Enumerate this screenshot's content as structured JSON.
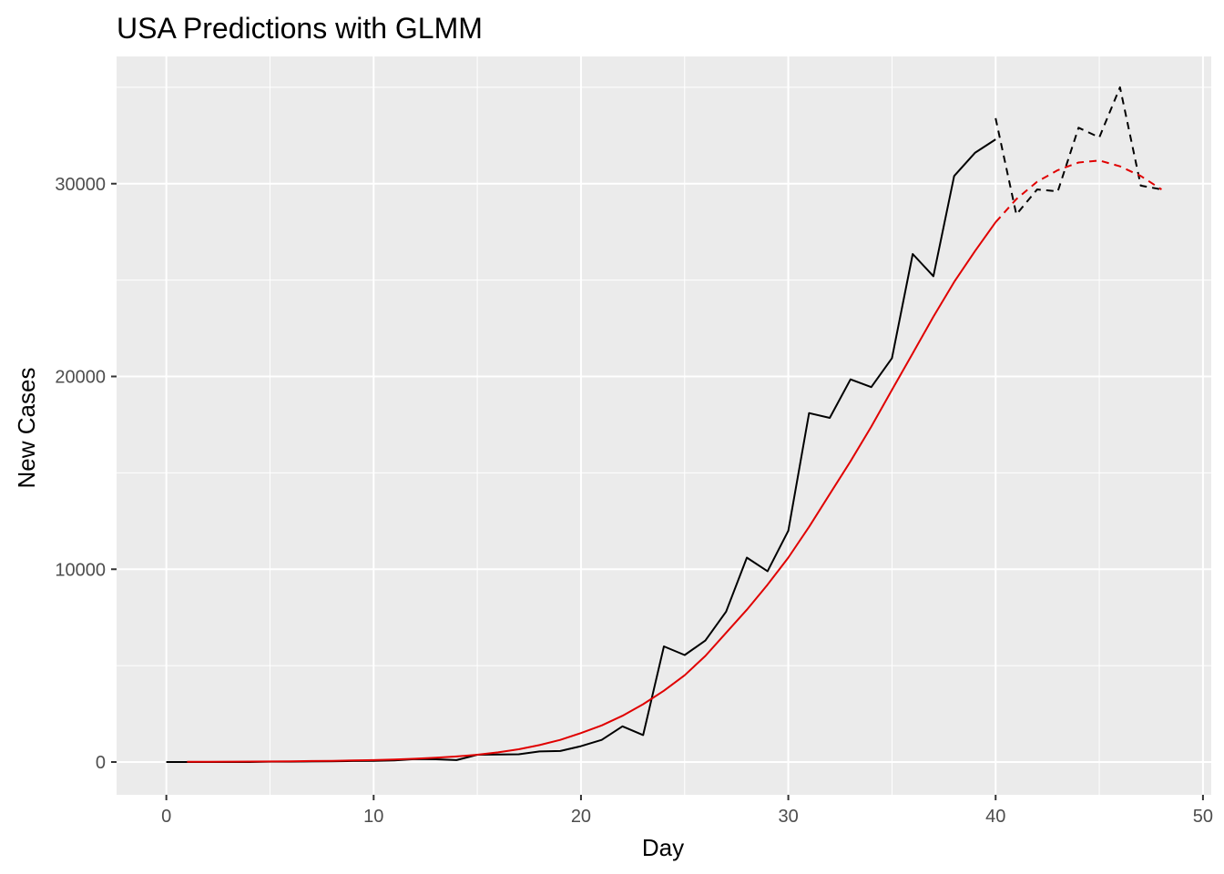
{
  "chart_data": {
    "type": "line",
    "title": "USA Predictions with GLMM",
    "xlabel": "Day",
    "ylabel": "New Cases",
    "xlim": [
      -2.4,
      50.4
    ],
    "ylim": [
      -1700,
      36600
    ],
    "x_ticks": [
      0,
      10,
      20,
      30,
      40,
      50
    ],
    "x_tick_labels": [
      "0",
      "10",
      "20",
      "30",
      "40",
      "50"
    ],
    "y_ticks": [
      0,
      10000,
      20000,
      30000
    ],
    "y_tick_labels": [
      "0",
      "10000",
      "20000",
      "30000"
    ],
    "grid": true,
    "legend": "none",
    "colors": {
      "panel": "#ebebeb",
      "grid": "#ffffff",
      "observed": "#000000",
      "predicted": "#e00000"
    },
    "series": [
      {
        "line_style": "solid",
        "color": "#000000",
        "x": [
          0,
          1,
          2,
          3,
          4,
          5,
          6,
          7,
          8,
          9,
          10,
          11,
          12,
          13,
          14,
          15,
          16,
          17,
          18,
          19,
          20,
          21,
          22,
          23,
          24,
          25,
          26,
          27,
          28,
          29,
          30,
          31,
          32,
          33,
          34,
          35,
          36,
          37,
          38,
          39,
          40
        ],
        "y": [
          0,
          0,
          0,
          0,
          0,
          20,
          20,
          30,
          40,
          50,
          60,
          80,
          150,
          140,
          100,
          380,
          390,
          400,
          550,
          570,
          820,
          1150,
          1850,
          1400,
          6000,
          5550,
          6300,
          7800,
          10600,
          9900,
          12000,
          18100,
          17850,
          19850,
          19450,
          20950,
          26350,
          25200,
          30400,
          31600,
          32300
        ]
      },
      {
        "line_style": "dashed",
        "color": "#000000",
        "x": [
          40,
          41,
          42,
          43,
          44,
          45,
          46,
          47,
          48
        ],
        "y": [
          33400,
          28400,
          29700,
          29600,
          32900,
          32400,
          35000,
          29900,
          29700
        ]
      },
      {
        "line_style": "solid",
        "color": "#e00000",
        "x": [
          1,
          2,
          3,
          4,
          5,
          6,
          7,
          8,
          9,
          10,
          11,
          12,
          13,
          14,
          15,
          16,
          17,
          18,
          19,
          20,
          21,
          22,
          23,
          24,
          25,
          26,
          27,
          28,
          29,
          30,
          31,
          32,
          33,
          34,
          35,
          36,
          37,
          38,
          39,
          40
        ],
        "y": [
          10,
          15,
          20,
          25,
          30,
          40,
          50,
          60,
          80,
          100,
          130,
          170,
          220,
          290,
          380,
          500,
          660,
          880,
          1150,
          1500,
          1900,
          2400,
          3000,
          3700,
          4500,
          5500,
          6700,
          7900,
          9200,
          10600,
          12200,
          13900,
          15600,
          17400,
          19300,
          21200,
          23100,
          24900,
          26500,
          28000
        ]
      },
      {
        "line_style": "dashed",
        "color": "#e00000",
        "x": [
          40,
          41,
          42,
          43,
          44,
          45,
          46,
          47,
          48
        ],
        "y": [
          28000,
          29200,
          30100,
          30700,
          31100,
          31200,
          30900,
          30400,
          29700
        ]
      }
    ]
  }
}
